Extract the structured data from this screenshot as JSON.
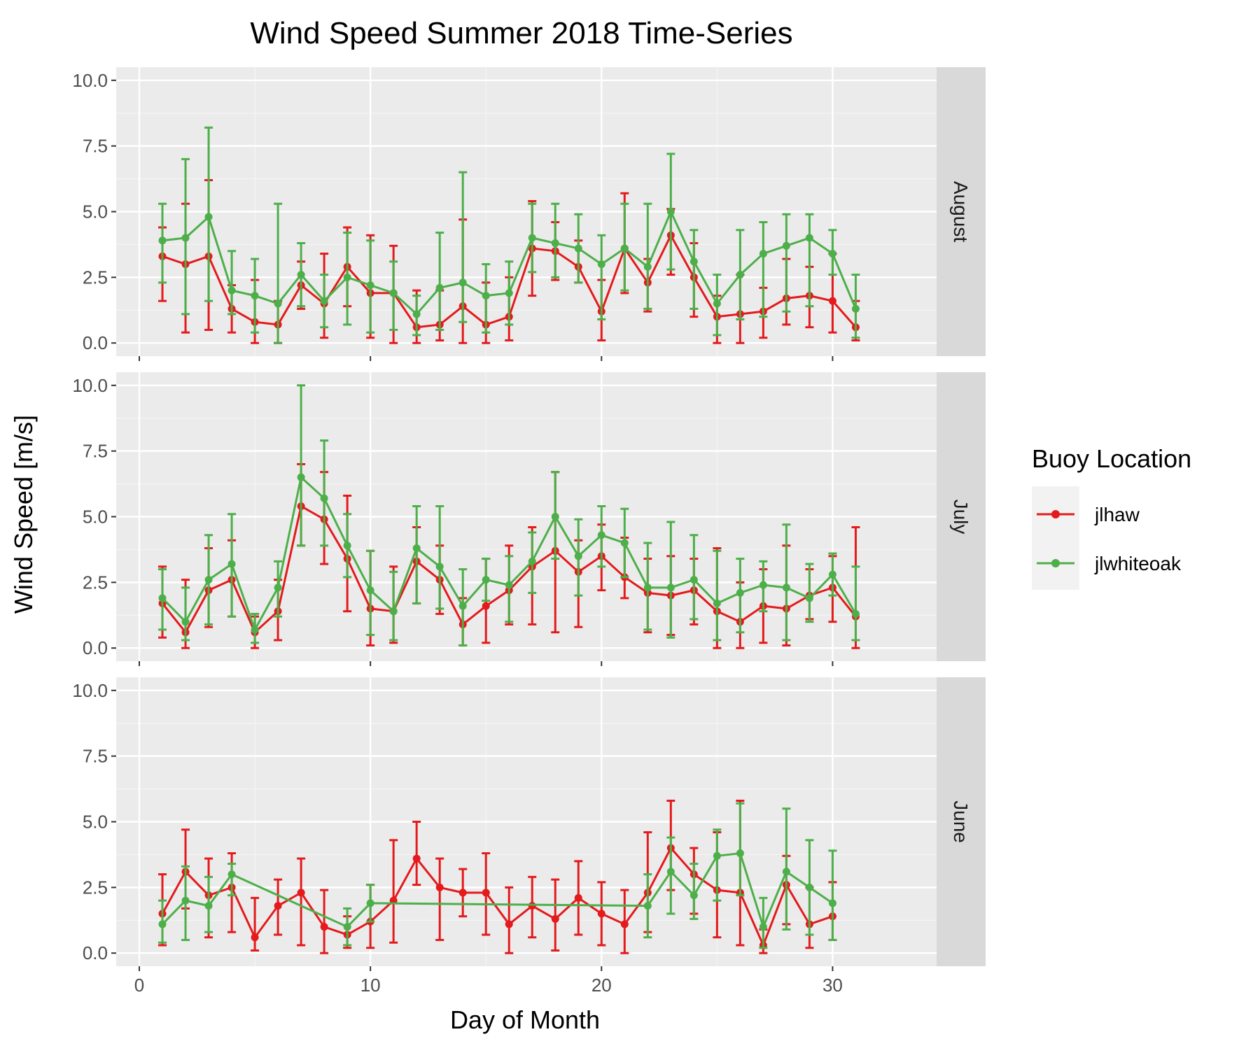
{
  "chart_data": {
    "type": "line",
    "title": "Wind Speed Summer 2018 Time-Series",
    "xlabel": "Day of Month",
    "ylabel": "Wind Speed [m/s]",
    "xlim": [
      -1,
      34.5
    ],
    "ylim": [
      -0.5,
      10.5
    ],
    "x_ticks": [
      0,
      10,
      20,
      30
    ],
    "y_ticks": [
      0,
      2.5,
      5,
      7.5,
      10
    ],
    "x_tick_labels": [
      "0",
      "10",
      "20",
      "30"
    ],
    "y_tick_labels": [
      "0.0",
      "2.5",
      "5.0",
      "7.5",
      "10.0"
    ],
    "grid": true,
    "error_bars": true,
    "legend": {
      "title": "Buoy Location",
      "position": "right",
      "entries": [
        "jlhaw",
        "jlwhiteoak"
      ]
    },
    "colors": {
      "jlhaw": "#e41a1c",
      "jlwhiteoak": "#4daf4a"
    },
    "panels": [
      {
        "label": "August",
        "series": [
          {
            "name": "jlhaw",
            "x": [
              1,
              2,
              3,
              4,
              5,
              6,
              7,
              8,
              9,
              10,
              11,
              12,
              13,
              14,
              15,
              16,
              17,
              18,
              19,
              20,
              21,
              22,
              23,
              24,
              25,
              26,
              27,
              28,
              29,
              30,
              31
            ],
            "values": [
              3.3,
              3.0,
              3.3,
              1.3,
              0.8,
              0.7,
              2.2,
              1.5,
              2.9,
              1.9,
              1.9,
              0.6,
              0.7,
              1.4,
              0.7,
              1.0,
              3.6,
              3.5,
              2.9,
              1.2,
              3.6,
              2.3,
              4.1,
              2.5,
              1.0,
              1.1,
              1.2,
              1.7,
              1.8,
              1.6,
              0.6
            ],
            "lower": [
              1.6,
              0.4,
              0.5,
              0.4,
              0.0,
              0.0,
              1.3,
              0.2,
              1.4,
              0.2,
              0.0,
              0.0,
              0.1,
              0.0,
              0.0,
              0.1,
              1.8,
              2.4,
              2.3,
              0.1,
              1.9,
              1.2,
              2.6,
              1.0,
              0.0,
              0.0,
              0.2,
              0.7,
              0.6,
              0.4,
              0.1
            ],
            "upper": [
              4.4,
              5.3,
              6.2,
              2.2,
              2.4,
              1.6,
              3.1,
              3.4,
              4.4,
              4.1,
              3.7,
              2.0,
              2.0,
              4.7,
              2.3,
              2.5,
              5.4,
              4.6,
              3.9,
              2.4,
              5.7,
              3.2,
              5.1,
              3.8,
              1.8,
              2.6,
              2.1,
              3.2,
              2.9,
              3.4,
              1.6
            ]
          },
          {
            "name": "jlwhiteoak",
            "x": [
              1,
              2,
              3,
              4,
              5,
              6,
              7,
              8,
              9,
              10,
              11,
              12,
              13,
              14,
              15,
              16,
              17,
              18,
              19,
              20,
              21,
              22,
              23,
              24,
              25,
              26,
              27,
              28,
              29,
              30,
              31
            ],
            "values": [
              3.9,
              4.0,
              4.8,
              2.0,
              1.8,
              1.5,
              2.6,
              1.6,
              2.5,
              2.2,
              1.9,
              1.1,
              2.1,
              2.3,
              1.8,
              1.9,
              4.0,
              3.8,
              3.6,
              3.0,
              3.6,
              2.9,
              5.0,
              3.1,
              1.5,
              2.6,
              3.4,
              3.7,
              4.0,
              3.4,
              1.3
            ],
            "lower": [
              2.3,
              1.1,
              1.6,
              1.1,
              0.4,
              0.0,
              1.4,
              0.6,
              0.7,
              0.4,
              0.5,
              0.3,
              0.5,
              0.8,
              0.4,
              0.7,
              2.7,
              2.5,
              2.3,
              0.9,
              2.0,
              1.3,
              2.8,
              1.3,
              0.3,
              0.9,
              1.0,
              1.2,
              1.4,
              2.6,
              0.2
            ],
            "upper": [
              5.3,
              7.0,
              8.2,
              3.5,
              3.2,
              5.3,
              3.8,
              2.6,
              4.2,
              3.9,
              3.1,
              1.8,
              4.2,
              6.5,
              3.0,
              3.1,
              5.3,
              5.3,
              4.9,
              4.1,
              5.3,
              5.3,
              7.2,
              4.3,
              2.6,
              4.3,
              4.6,
              4.9,
              4.9,
              4.3,
              2.6
            ]
          }
        ]
      },
      {
        "label": "July",
        "series": [
          {
            "name": "jlhaw",
            "x": [
              1,
              2,
              3,
              4,
              5,
              6,
              7,
              8,
              9,
              10,
              11,
              12,
              13,
              14,
              15,
              16,
              17,
              18,
              19,
              20,
              21,
              22,
              23,
              24,
              25,
              26,
              27,
              28,
              29,
              30,
              31
            ],
            "values": [
              1.7,
              0.6,
              2.2,
              2.6,
              0.6,
              1.4,
              5.4,
              4.9,
              3.4,
              1.5,
              1.4,
              3.3,
              2.6,
              0.9,
              1.6,
              2.2,
              3.1,
              3.7,
              2.9,
              3.5,
              2.7,
              2.1,
              2.0,
              2.2,
              1.4,
              1.0,
              1.6,
              1.5,
              2.0,
              2.3,
              1.2
            ],
            "lower": [
              0.4,
              0.0,
              0.8,
              1.2,
              0.0,
              0.3,
              3.9,
              3.2,
              1.4,
              0.1,
              0.2,
              1.7,
              1.3,
              0.1,
              0.2,
              0.9,
              0.9,
              0.6,
              0.8,
              2.2,
              1.9,
              0.6,
              0.5,
              0.9,
              0.0,
              0.0,
              0.2,
              0.1,
              1.1,
              1.0,
              0.0
            ],
            "upper": [
              3.1,
              2.6,
              3.8,
              4.1,
              1.2,
              2.6,
              7.0,
              6.7,
              5.8,
              3.7,
              3.1,
              4.6,
              3.9,
              1.9,
              3.4,
              3.9,
              4.6,
              6.7,
              4.1,
              4.7,
              4.2,
              3.4,
              3.5,
              3.4,
              3.8,
              2.5,
              3.0,
              3.9,
              3.0,
              3.5,
              4.6
            ]
          },
          {
            "name": "jlwhiteoak",
            "x": [
              1,
              2,
              3,
              4,
              5,
              6,
              7,
              8,
              9,
              10,
              11,
              12,
              13,
              14,
              15,
              16,
              17,
              18,
              19,
              20,
              21,
              22,
              23,
              24,
              25,
              26,
              27,
              28,
              29,
              30,
              31
            ],
            "values": [
              1.9,
              1.0,
              2.6,
              3.2,
              0.7,
              2.3,
              6.5,
              5.7,
              3.9,
              2.2,
              1.4,
              3.8,
              3.1,
              1.6,
              2.6,
              2.4,
              3.3,
              5.0,
              3.5,
              4.3,
              4.0,
              2.3,
              2.3,
              2.6,
              1.7,
              2.1,
              2.4,
              2.3,
              1.9,
              2.8,
              1.3
            ],
            "lower": [
              0.7,
              0.3,
              0.9,
              1.2,
              0.2,
              1.2,
              3.9,
              3.9,
              2.7,
              0.5,
              0.3,
              1.7,
              1.5,
              0.1,
              1.8,
              1.0,
              2.1,
              3.4,
              2.0,
              3.1,
              2.7,
              0.7,
              0.4,
              1.1,
              0.3,
              0.6,
              1.4,
              0.3,
              1.0,
              2.0,
              0.3
            ],
            "upper": [
              3.0,
              2.3,
              4.3,
              5.1,
              1.3,
              3.3,
              10.0,
              7.9,
              5.1,
              3.7,
              2.9,
              5.4,
              5.4,
              3.0,
              3.4,
              3.5,
              4.4,
              6.7,
              4.9,
              5.4,
              5.3,
              4.0,
              4.8,
              4.3,
              3.7,
              3.4,
              3.3,
              4.7,
              3.2,
              3.6,
              3.1
            ]
          }
        ]
      },
      {
        "label": "June",
        "series": [
          {
            "name": "jlhaw",
            "x": [
              1,
              2,
              3,
              4,
              5,
              6,
              7,
              8,
              9,
              10,
              11,
              12,
              13,
              14,
              15,
              16,
              17,
              18,
              19,
              20,
              21,
              22,
              23,
              24,
              25,
              26,
              27,
              28,
              29,
              30
            ],
            "values": [
              1.5,
              3.1,
              2.2,
              2.5,
              0.6,
              1.8,
              2.3,
              1.0,
              0.7,
              1.2,
              2.0,
              3.6,
              2.5,
              2.3,
              2.3,
              1.1,
              1.8,
              1.3,
              2.1,
              1.5,
              1.1,
              2.3,
              4.0,
              3.0,
              2.4,
              2.3,
              0.3,
              2.6,
              1.1,
              1.4
            ],
            "lower": [
              0.3,
              1.7,
              0.6,
              0.8,
              0.1,
              0.7,
              0.3,
              0.0,
              0.2,
              0.2,
              0.4,
              2.6,
              0.5,
              1.4,
              0.7,
              0.0,
              0.6,
              0.1,
              0.7,
              0.3,
              0.0,
              0.8,
              2.4,
              1.5,
              0.6,
              0.3,
              0.0,
              1.1,
              0.2,
              0.5
            ],
            "upper": [
              3.0,
              4.7,
              3.6,
              3.8,
              2.1,
              2.8,
              3.6,
              2.4,
              1.4,
              2.6,
              4.3,
              5.0,
              3.6,
              3.2,
              3.8,
              2.5,
              2.9,
              2.8,
              3.5,
              2.7,
              2.4,
              4.6,
              5.8,
              4.0,
              4.6,
              5.8,
              0.9,
              3.7,
              2.5,
              2.7
            ]
          },
          {
            "name": "jlwhiteoak",
            "x": [
              1,
              2,
              3,
              4,
              9,
              10,
              22,
              23,
              24,
              25,
              26,
              27,
              28,
              29,
              30
            ],
            "values": [
              1.1,
              2.0,
              1.8,
              3.0,
              1.0,
              1.9,
              1.8,
              3.1,
              2.2,
              3.7,
              3.8,
              1.0,
              3.1,
              2.5,
              1.9
            ],
            "lower": [
              0.4,
              0.5,
              0.8,
              2.2,
              0.3,
              1.2,
              0.6,
              1.5,
              1.3,
              2.0,
              2.2,
              0.2,
              0.9,
              0.7,
              0.5
            ],
            "upper": [
              2.0,
              3.3,
              2.9,
              3.4,
              1.7,
              2.6,
              3.0,
              4.4,
              3.4,
              4.7,
              5.7,
              2.1,
              5.5,
              4.3,
              3.9
            ]
          }
        ]
      }
    ]
  }
}
